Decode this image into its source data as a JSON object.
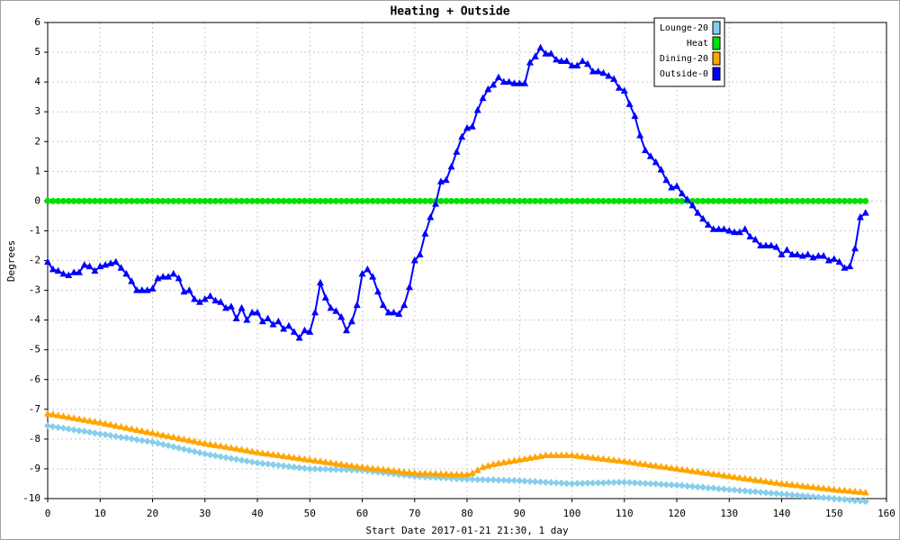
{
  "chart_data": {
    "type": "line",
    "title": "Heating + Outside",
    "x_label": "Start Date 2017-01-21 21:30, 1 day",
    "y_label": "Degrees",
    "xlim": [
      0,
      160
    ],
    "ylim": [
      -10,
      6
    ],
    "xticks": [
      0,
      10,
      20,
      30,
      40,
      50,
      60,
      70,
      80,
      90,
      100,
      110,
      120,
      130,
      140,
      150,
      160
    ],
    "yticks": [
      -10,
      -9,
      -8,
      -7,
      -6,
      -5,
      -4,
      -3,
      -2,
      -1,
      0,
      1,
      2,
      3,
      4,
      5,
      6
    ],
    "grid": true,
    "legend": "top-right",
    "x": [
      0,
      1,
      2,
      3,
      4,
      5,
      6,
      7,
      8,
      9,
      10,
      11,
      12,
      13,
      14,
      15,
      16,
      17,
      18,
      19,
      20,
      21,
      22,
      23,
      24,
      25,
      26,
      27,
      28,
      29,
      30,
      31,
      32,
      33,
      34,
      35,
      36,
      37,
      38,
      39,
      40,
      41,
      42,
      43,
      44,
      45,
      46,
      47,
      48,
      49,
      50,
      51,
      52,
      53,
      54,
      55,
      56,
      57,
      58,
      59,
      60,
      61,
      62,
      63,
      64,
      65,
      66,
      67,
      68,
      69,
      70,
      71,
      72,
      73,
      74,
      75,
      76,
      77,
      78,
      79,
      80,
      81,
      82,
      83,
      84,
      85,
      86,
      87,
      88,
      89,
      90,
      91,
      92,
      93,
      94,
      95,
      96,
      97,
      98,
      99,
      100,
      101,
      102,
      103,
      104,
      105,
      106,
      107,
      108,
      109,
      110,
      111,
      112,
      113,
      114,
      115,
      116,
      117,
      118,
      119,
      120,
      121,
      122,
      123,
      124,
      125,
      126,
      127,
      128,
      129,
      130,
      131,
      132,
      133,
      134,
      135,
      136,
      137,
      138,
      139,
      140,
      141,
      142,
      143,
      144,
      145,
      146,
      147,
      148,
      149,
      150,
      151,
      152,
      153,
      154,
      155,
      156
    ],
    "series": [
      {
        "name": "Lounge-20",
        "color": "#87ceeb",
        "marker": "diamond",
        "values": [
          -7.55,
          -7.58,
          -7.61,
          -7.63,
          -7.66,
          -7.69,
          -7.72,
          -7.74,
          -7.77,
          -7.8,
          -7.83,
          -7.85,
          -7.88,
          -7.91,
          -7.94,
          -7.96,
          -7.99,
          -8.02,
          -8.05,
          -8.07,
          -8.1,
          -8.14,
          -8.18,
          -8.22,
          -8.26,
          -8.3,
          -8.34,
          -8.38,
          -8.42,
          -8.46,
          -8.5,
          -8.53,
          -8.56,
          -8.59,
          -8.62,
          -8.65,
          -8.68,
          -8.71,
          -8.74,
          -8.77,
          -8.8,
          -8.82,
          -8.84,
          -8.86,
          -8.88,
          -8.9,
          -8.92,
          -8.94,
          -8.96,
          -8.98,
          -9.0,
          -9.0,
          -9.01,
          -9.01,
          -9.02,
          -9.02,
          -9.03,
          -9.03,
          -9.04,
          -9.04,
          -9.05,
          -9.07,
          -9.09,
          -9.11,
          -9.13,
          -9.15,
          -9.17,
          -9.19,
          -9.21,
          -9.23,
          -9.25,
          -9.26,
          -9.27,
          -9.28,
          -9.29,
          -9.3,
          -9.31,
          -9.32,
          -9.33,
          -9.34,
          -9.35,
          -9.35,
          -9.36,
          -9.36,
          -9.37,
          -9.37,
          -9.38,
          -9.38,
          -9.39,
          -9.39,
          -9.4,
          -9.41,
          -9.42,
          -9.43,
          -9.44,
          -9.45,
          -9.46,
          -9.47,
          -9.48,
          -9.49,
          -9.5,
          -9.49,
          -9.49,
          -9.48,
          -9.48,
          -9.47,
          -9.47,
          -9.46,
          -9.46,
          -9.45,
          -9.45,
          -9.46,
          -9.47,
          -9.48,
          -9.49,
          -9.5,
          -9.51,
          -9.52,
          -9.53,
          -9.54,
          -9.55,
          -9.56,
          -9.58,
          -9.59,
          -9.61,
          -9.62,
          -9.64,
          -9.65,
          -9.67,
          -9.68,
          -9.7,
          -9.71,
          -9.73,
          -9.74,
          -9.76,
          -9.77,
          -9.79,
          -9.8,
          -9.82,
          -9.83,
          -9.85,
          -9.86,
          -9.88,
          -9.89,
          -9.91,
          -9.92,
          -9.94,
          -9.95,
          -9.97,
          -9.98,
          -10.0,
          -10.02,
          -10.03,
          -10.05,
          -10.07,
          -10.08,
          -10.1
        ]
      },
      {
        "name": "Heat",
        "color": "#00e000",
        "marker": "circle",
        "values": [
          0,
          0,
          0,
          0,
          0,
          0,
          0,
          0,
          0,
          0,
          0,
          0,
          0,
          0,
          0,
          0,
          0,
          0,
          0,
          0,
          0,
          0,
          0,
          0,
          0,
          0,
          0,
          0,
          0,
          0,
          0,
          0,
          0,
          0,
          0,
          0,
          0,
          0,
          0,
          0,
          0,
          0,
          0,
          0,
          0,
          0,
          0,
          0,
          0,
          0,
          0,
          0,
          0,
          0,
          0,
          0,
          0,
          0,
          0,
          0,
          0,
          0,
          0,
          0,
          0,
          0,
          0,
          0,
          0,
          0,
          0,
          0,
          0,
          0,
          0,
          0,
          0,
          0,
          0,
          0,
          0,
          0,
          0,
          0,
          0,
          0,
          0,
          0,
          0,
          0,
          0,
          0,
          0,
          0,
          0,
          0,
          0,
          0,
          0,
          0,
          0,
          0,
          0,
          0,
          0,
          0,
          0,
          0,
          0,
          0,
          0,
          0,
          0,
          0,
          0,
          0,
          0,
          0,
          0,
          0,
          0,
          0,
          0,
          0,
          0,
          0,
          0,
          0,
          0,
          0,
          0,
          0,
          0,
          0,
          0,
          0,
          0,
          0,
          0,
          0,
          0,
          0,
          0,
          0,
          0,
          0,
          0,
          0,
          0,
          0,
          0,
          0,
          0,
          0,
          0,
          0,
          0
        ]
      },
      {
        "name": "Dining-20",
        "color": "#ffa500",
        "marker": "triangle",
        "values": [
          -7.15,
          -7.18,
          -7.21,
          -7.24,
          -7.27,
          -7.3,
          -7.33,
          -7.36,
          -7.39,
          -7.42,
          -7.45,
          -7.49,
          -7.52,
          -7.56,
          -7.59,
          -7.63,
          -7.66,
          -7.7,
          -7.73,
          -7.77,
          -7.8,
          -7.84,
          -7.87,
          -7.91,
          -7.94,
          -7.98,
          -8.01,
          -8.05,
          -8.08,
          -8.12,
          -8.15,
          -8.18,
          -8.21,
          -8.24,
          -8.27,
          -8.3,
          -8.33,
          -8.36,
          -8.39,
          -8.42,
          -8.45,
          -8.48,
          -8.5,
          -8.53,
          -8.55,
          -8.58,
          -8.6,
          -8.63,
          -8.65,
          -8.68,
          -8.7,
          -8.73,
          -8.75,
          -8.78,
          -8.8,
          -8.83,
          -8.85,
          -8.88,
          -8.9,
          -8.93,
          -8.95,
          -8.97,
          -8.99,
          -9.01,
          -9.03,
          -9.05,
          -9.07,
          -9.09,
          -9.11,
          -9.13,
          -9.15,
          -9.16,
          -9.16,
          -9.17,
          -9.17,
          -9.18,
          -9.18,
          -9.19,
          -9.19,
          -9.2,
          -9.2,
          -9.15,
          -9.05,
          -8.95,
          -8.9,
          -8.85,
          -8.82,
          -8.79,
          -8.76,
          -8.73,
          -8.7,
          -8.67,
          -8.64,
          -8.61,
          -8.58,
          -8.55,
          -8.55,
          -8.55,
          -8.55,
          -8.55,
          -8.55,
          -8.57,
          -8.59,
          -8.61,
          -8.63,
          -8.65,
          -8.67,
          -8.69,
          -8.71,
          -8.73,
          -8.75,
          -8.78,
          -8.8,
          -8.83,
          -8.85,
          -8.88,
          -8.9,
          -8.93,
          -8.95,
          -8.98,
          -9.0,
          -9.03,
          -9.05,
          -9.08,
          -9.1,
          -9.13,
          -9.15,
          -9.18,
          -9.2,
          -9.23,
          -9.25,
          -9.28,
          -9.3,
          -9.33,
          -9.35,
          -9.38,
          -9.4,
          -9.43,
          -9.45,
          -9.48,
          -9.5,
          -9.52,
          -9.54,
          -9.56,
          -9.58,
          -9.6,
          -9.62,
          -9.64,
          -9.66,
          -9.68,
          -9.7,
          -9.72,
          -9.73,
          -9.75,
          -9.77,
          -9.78,
          -9.8
        ]
      },
      {
        "name": "Outside-0",
        "color": "#0000ff",
        "marker": "triangle",
        "values": [
          -2.05,
          -2.3,
          -2.35,
          -2.45,
          -2.5,
          -2.4,
          -2.4,
          -2.15,
          -2.2,
          -2.35,
          -2.2,
          -2.15,
          -2.1,
          -2.05,
          -2.25,
          -2.45,
          -2.7,
          -3.0,
          -3.0,
          -3.0,
          -2.95,
          -2.6,
          -2.55,
          -2.55,
          -2.45,
          -2.6,
          -3.05,
          -3.0,
          -3.3,
          -3.4,
          -3.3,
          -3.2,
          -3.35,
          -3.4,
          -3.6,
          -3.55,
          -3.95,
          -3.6,
          -4.0,
          -3.75,
          -3.75,
          -4.05,
          -3.95,
          -4.15,
          -4.05,
          -4.3,
          -4.2,
          -4.4,
          -4.6,
          -4.35,
          -4.4,
          -3.75,
          -2.75,
          -3.25,
          -3.6,
          -3.7,
          -3.9,
          -4.35,
          -4.05,
          -3.5,
          -2.45,
          -2.3,
          -2.55,
          -3.05,
          -3.5,
          -3.75,
          -3.75,
          -3.8,
          -3.5,
          -2.9,
          -2.0,
          -1.8,
          -1.1,
          -0.55,
          -0.1,
          0.65,
          0.7,
          1.15,
          1.65,
          2.15,
          2.45,
          2.5,
          3.05,
          3.45,
          3.75,
          3.9,
          4.15,
          4.0,
          4.0,
          3.95,
          3.95,
          3.95,
          4.65,
          4.85,
          5.15,
          4.95,
          4.95,
          4.75,
          4.7,
          4.7,
          4.55,
          4.55,
          4.7,
          4.6,
          4.35,
          4.35,
          4.3,
          4.2,
          4.1,
          3.8,
          3.7,
          3.25,
          2.85,
          2.2,
          1.7,
          1.5,
          1.3,
          1.05,
          0.7,
          0.45,
          0.5,
          0.25,
          0.05,
          -0.15,
          -0.4,
          -0.6,
          -0.8,
          -0.95,
          -0.95,
          -0.95,
          -1.0,
          -1.05,
          -1.05,
          -0.95,
          -1.2,
          -1.3,
          -1.5,
          -1.5,
          -1.5,
          -1.55,
          -1.8,
          -1.65,
          -1.8,
          -1.8,
          -1.85,
          -1.8,
          -1.9,
          -1.85,
          -1.85,
          -2.0,
          -1.95,
          -2.05,
          -2.25,
          -2.2,
          -1.6,
          -0.55,
          -0.4
        ]
      }
    ]
  }
}
